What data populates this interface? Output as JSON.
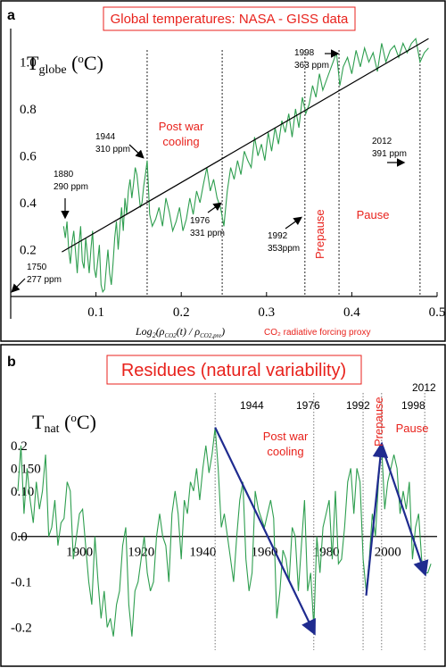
{
  "chart_data": [
    {
      "panel_label": "a",
      "type": "line",
      "title": "Global temperatures: NASA - GISS data",
      "ylabel_main": "T",
      "ylabel_sub": "globe",
      "ylabel_unit_open": " (",
      "ylabel_unit_sup": "o",
      "ylabel_unit_close": "C)",
      "xlabel_log": "Log",
      "xlabel_log_sub": "2",
      "xlabel_inner": "(ρ",
      "xlabel_inner_sub": "CO2",
      "xlabel_t": "(t) / ρ",
      "xlabel_inner_sub2": "CO2,pre",
      "xlabel_close": ")",
      "xlabel_right": "CO₂ radiative forcing proxy",
      "xlim": [
        0,
        0.5
      ],
      "ylim": [
        0,
        1.12
      ],
      "xticks": [
        0.1,
        0.2,
        0.3,
        0.4,
        0.5
      ],
      "xtick_labels": [
        "0.1",
        "0.2",
        "0.3",
        "0.4",
        "0.5"
      ],
      "yticks": [
        0.2,
        0.4,
        0.6,
        0.8,
        1.0
      ],
      "ytick_labels": [
        "0.2",
        "0.4",
        "0.6",
        "0.8",
        "1.0"
      ],
      "series": [
        {
          "color": "#2e9e4f",
          "x": [
            0.062,
            0.064,
            0.066,
            0.068,
            0.07,
            0.072,
            0.074,
            0.076,
            0.078,
            0.08,
            0.082,
            0.084,
            0.086,
            0.088,
            0.09,
            0.092,
            0.094,
            0.096,
            0.098,
            0.1,
            0.102,
            0.104,
            0.106,
            0.108,
            0.11,
            0.112,
            0.114,
            0.116,
            0.118,
            0.12,
            0.122,
            0.124,
            0.126,
            0.128,
            0.13,
            0.132,
            0.134,
            0.136,
            0.138,
            0.14,
            0.142,
            0.144,
            0.146,
            0.148,
            0.15,
            0.152,
            0.154,
            0.156,
            0.158,
            0.16,
            0.163,
            0.166,
            0.17,
            0.174,
            0.178,
            0.182,
            0.186,
            0.19,
            0.194,
            0.198,
            0.202,
            0.206,
            0.21,
            0.214,
            0.218,
            0.222,
            0.226,
            0.23,
            0.234,
            0.238,
            0.242,
            0.246,
            0.25,
            0.254,
            0.258,
            0.262,
            0.266,
            0.27,
            0.274,
            0.278,
            0.282,
            0.286,
            0.29,
            0.294,
            0.298,
            0.302,
            0.306,
            0.31,
            0.314,
            0.318,
            0.322,
            0.326,
            0.33,
            0.334,
            0.338,
            0.342,
            0.346,
            0.35,
            0.354,
            0.358,
            0.362,
            0.366,
            0.37,
            0.374,
            0.378,
            0.382,
            0.386,
            0.39,
            0.395,
            0.4,
            0.405,
            0.41,
            0.415,
            0.42,
            0.425,
            0.43,
            0.435,
            0.44,
            0.445,
            0.45,
            0.455,
            0.46,
            0.465,
            0.47,
            0.475,
            0.48,
            0.485,
            0.49
          ],
          "y": [
            0.3,
            0.25,
            0.32,
            0.2,
            0.14,
            0.23,
            0.28,
            0.19,
            0.1,
            0.22,
            0.3,
            0.15,
            0.12,
            0.25,
            0.18,
            0.1,
            0.2,
            0.28,
            0.12,
            0.08,
            0.15,
            0.22,
            0.05,
            0.02,
            0.03,
            0.12,
            0.2,
            0.1,
            0.05,
            0.14,
            0.25,
            0.32,
            0.2,
            0.3,
            0.38,
            0.28,
            0.42,
            0.35,
            0.45,
            0.5,
            0.42,
            0.48,
            0.55,
            0.52,
            0.45,
            0.38,
            0.4,
            0.47,
            0.52,
            0.58,
            0.35,
            0.3,
            0.33,
            0.38,
            0.3,
            0.42,
            0.36,
            0.28,
            0.32,
            0.38,
            0.28,
            0.33,
            0.42,
            0.35,
            0.45,
            0.4,
            0.48,
            0.55,
            0.45,
            0.5,
            0.42,
            0.38,
            0.3,
            0.45,
            0.55,
            0.5,
            0.58,
            0.52,
            0.62,
            0.58,
            0.55,
            0.68,
            0.6,
            0.65,
            0.58,
            0.7,
            0.62,
            0.72,
            0.65,
            0.75,
            0.7,
            0.78,
            0.68,
            0.8,
            0.72,
            0.85,
            0.78,
            0.82,
            0.9,
            0.85,
            0.95,
            0.88,
            0.92,
            0.96,
            1.0,
            1.04,
            0.9,
            0.98,
            1.02,
            0.95,
            1.05,
            0.98,
            1.06,
            1.0,
            1.04,
            0.96,
            1.08,
            1.0,
            1.05,
            1.07,
            1.02,
            1.08,
            1.04,
            1.08,
            1.1,
            1.0,
            1.04,
            1.06
          ]
        }
      ],
      "trend_line": {
        "x": [
          0.06,
          0.49
        ],
        "y": [
          0.19,
          1.1
        ]
      },
      "vlines": [
        0.16,
        0.248,
        0.345,
        0.385,
        0.48
      ],
      "annotations": [
        {
          "line1": "1750",
          "line2": "277 ppm"
        },
        {
          "line1": "1880",
          "line2": "290 ppm"
        },
        {
          "line1": "1944",
          "line2": "310 ppm"
        },
        {
          "line1": "1976",
          "line2": "331 ppm"
        },
        {
          "line1": "1992",
          "line2": "353ppm"
        },
        {
          "line1": "1998",
          "line2": "363 ppm"
        },
        {
          "line1": "2012",
          "line2": "391 ppm"
        }
      ],
      "region_labels": {
        "postwar1": "Post war",
        "postwar2": "cooling",
        "prepause": "Prepause",
        "pause": "Pause"
      }
    },
    {
      "panel_label": "b",
      "type": "line",
      "title": "Residues (natural variability)",
      "ylabel_main": "T",
      "ylabel_sub": "nat",
      "ylabel_unit_open": " (",
      "ylabel_unit_sup": "o",
      "ylabel_unit_close": "C)",
      "xlim": [
        1880,
        2016
      ],
      "ylim": [
        -0.25,
        0.3
      ],
      "xticks": [
        1900,
        1920,
        1940,
        1960,
        1980,
        2000
      ],
      "xtick_labels": [
        "1900",
        "1920",
        "1940",
        "1960",
        "1980",
        "2000"
      ],
      "yticks": [
        -0.2,
        -0.1,
        0.0,
        0.1,
        0.15,
        0.2
      ],
      "ytick_labels": [
        "-0.2",
        "-0.1",
        "0.0",
        "0.10",
        "0.150",
        "0.2"
      ],
      "series": [
        {
          "color": "#2e9e4f",
          "x": [
            1880,
            1881,
            1882,
            1883,
            1884,
            1885,
            1886,
            1887,
            1888,
            1889,
            1890,
            1891,
            1892,
            1893,
            1894,
            1895,
            1896,
            1897,
            1898,
            1899,
            1900,
            1901,
            1902,
            1903,
            1904,
            1905,
            1906,
            1907,
            1908,
            1909,
            1910,
            1911,
            1912,
            1913,
            1914,
            1915,
            1916,
            1917,
            1918,
            1919,
            1920,
            1921,
            1922,
            1923,
            1924,
            1925,
            1926,
            1927,
            1928,
            1929,
            1930,
            1931,
            1932,
            1933,
            1934,
            1935,
            1936,
            1937,
            1938,
            1939,
            1940,
            1941,
            1942,
            1943,
            1944,
            1945,
            1946,
            1947,
            1948,
            1949,
            1950,
            1951,
            1952,
            1953,
            1954,
            1955,
            1956,
            1957,
            1958,
            1959,
            1960,
            1961,
            1962,
            1963,
            1964,
            1965,
            1966,
            1967,
            1968,
            1969,
            1970,
            1971,
            1972,
            1973,
            1974,
            1975,
            1976,
            1977,
            1978,
            1979,
            1980,
            1981,
            1982,
            1983,
            1984,
            1985,
            1986,
            1987,
            1988,
            1989,
            1990,
            1991,
            1992,
            1993,
            1994,
            1995,
            1996,
            1997,
            1998,
            1999,
            2000,
            2001,
            2002,
            2003,
            2004,
            2005,
            2006,
            2007,
            2008,
            2009,
            2010,
            2011,
            2012,
            2013,
            2014
          ],
          "y": [
            0.1,
            0.2,
            0.05,
            0.15,
            0.08,
            0.03,
            0.12,
            0.06,
            0.1,
            0.18,
            0.0,
            0.02,
            0.08,
            -0.02,
            0.03,
            0.04,
            0.12,
            0.1,
            -0.05,
            0.0,
            0.05,
            0.06,
            -0.02,
            -0.1,
            -0.15,
            0.0,
            -0.1,
            -0.18,
            -0.12,
            -0.2,
            -0.18,
            -0.22,
            -0.15,
            -0.12,
            -0.02,
            0.02,
            -0.15,
            -0.22,
            -0.12,
            -0.1,
            -0.05,
            0.0,
            -0.08,
            -0.12,
            -0.1,
            0.0,
            0.05,
            0.0,
            -0.02,
            -0.1,
            0.05,
            0.1,
            0.05,
            -0.05,
            0.08,
            0.05,
            0.12,
            0.1,
            0.15,
            0.08,
            0.15,
            0.2,
            0.14,
            0.18,
            0.24,
            0.15,
            0.02,
            0.05,
            0.0,
            -0.05,
            -0.1,
            0.0,
            0.08,
            0.12,
            -0.05,
            -0.12,
            -0.08,
            0.1,
            0.06,
            0.04,
            0.02,
            0.05,
            0.08,
            0.04,
            -0.18,
            -0.12,
            -0.03,
            -0.05,
            -0.1,
            0.02,
            0.0,
            -0.12,
            -0.02,
            0.08,
            -0.12,
            -0.08,
            -0.2,
            0.0,
            -0.08,
            0.02,
            0.05,
            0.08,
            -0.05,
            0.1,
            -0.06,
            -0.05,
            0.02,
            0.12,
            0.15,
            0.05,
            0.15,
            0.12,
            -0.05,
            -0.12,
            -0.05,
            0.05,
            0.0,
            0.12,
            0.2,
            0.06,
            0.12,
            0.15,
            0.18,
            0.15,
            0.05,
            0.1,
            0.06,
            0.12,
            -0.05,
            0.02,
            0.05,
            -0.05,
            -0.08,
            -0.08,
            -0.06
          ]
        }
      ],
      "trend_segments": [
        {
          "x": [
            1944,
            1976
          ],
          "y": [
            0.24,
            -0.21
          ]
        },
        {
          "x": [
            1993,
            1998
          ],
          "y": [
            -0.13,
            0.2
          ]
        },
        {
          "x": [
            1998,
            2012
          ],
          "y": [
            0.2,
            -0.08
          ]
        }
      ],
      "vlines": [
        1944,
        1976,
        1992,
        1998,
        2012
      ],
      "year_labels": [
        "1944",
        "1976",
        "1992",
        "1998",
        "2012"
      ],
      "region_labels": {
        "postwar1": "Post war",
        "postwar2": "cooling",
        "prepause": "Prepause",
        "pause": "Pause"
      }
    }
  ]
}
